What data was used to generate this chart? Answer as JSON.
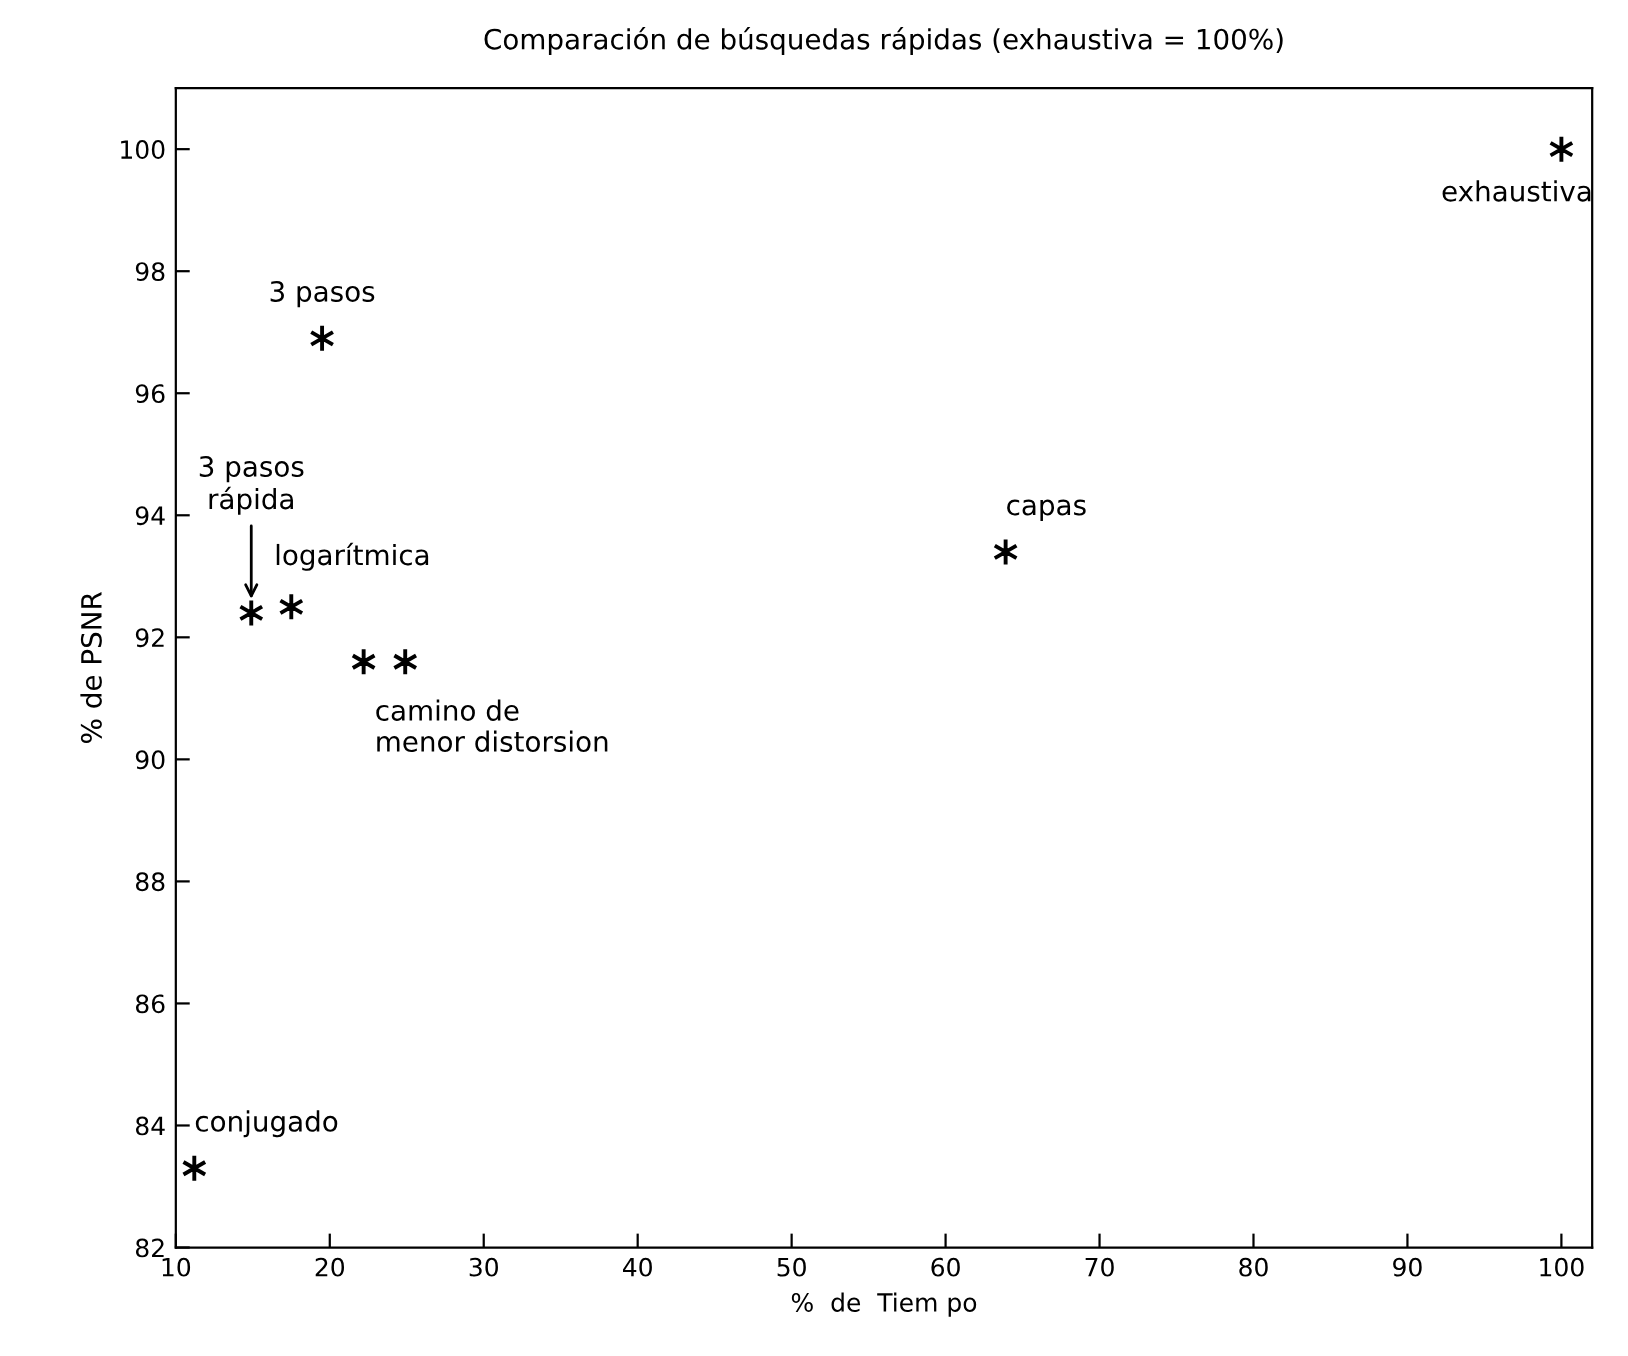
{
  "chart_data": {
    "type": "scatter",
    "title": "Comparación de búsquedas rápidas (exhaustiva = 100%)",
    "xlabel": "%  de  Tiem po",
    "ylabel": "% de PSNR",
    "x": [
      100,
      19.5,
      14.9,
      17.5,
      22.2,
      24.9,
      11.2,
      63.9
    ],
    "series": [
      {
        "color": "#000000",
        "values": [
          100,
          96.9,
          92.4,
          92.5,
          91.6,
          91.6,
          83.3,
          93.4
        ]
      }
    ],
    "marker": "cross",
    "grid": false,
    "xlim": [
      10,
      102
    ],
    "ylim": [
      82,
      101
    ],
    "xticks": [
      10,
      20,
      30,
      40,
      50,
      60,
      70,
      80,
      90,
      100
    ],
    "yticks": [
      82,
      84,
      86,
      88,
      90,
      92,
      94,
      96,
      98,
      100
    ],
    "annotations": [
      {
        "text": "exhaustiva",
        "x": 100,
        "y": 100
      },
      {
        "text": "3 pasos",
        "x": 19.5,
        "y": 96.9
      },
      {
        "text": "3 pasos\nrápida",
        "x": 14.9,
        "y": 92.4
      },
      {
        "text": "logarítmica",
        "x": 17.5,
        "y": 92.5
      },
      {
        "text": "camino de\nmenor distorsion",
        "x": 22.2,
        "y": 91.6
      },
      {
        "text": "conjugado",
        "x": 11.2,
        "y": 83.3
      },
      {
        "text": "capas",
        "x": 63.9,
        "y": 93.4
      }
    ]
  }
}
